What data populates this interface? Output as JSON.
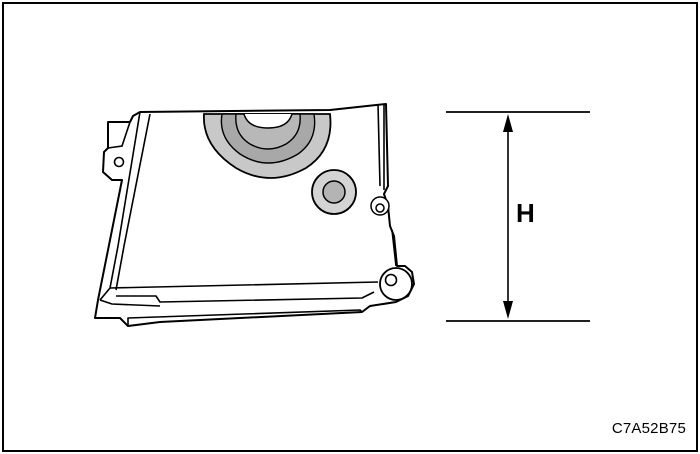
{
  "diagram": {
    "dimension_label": "H",
    "figure_code": "C7A52B75"
  }
}
